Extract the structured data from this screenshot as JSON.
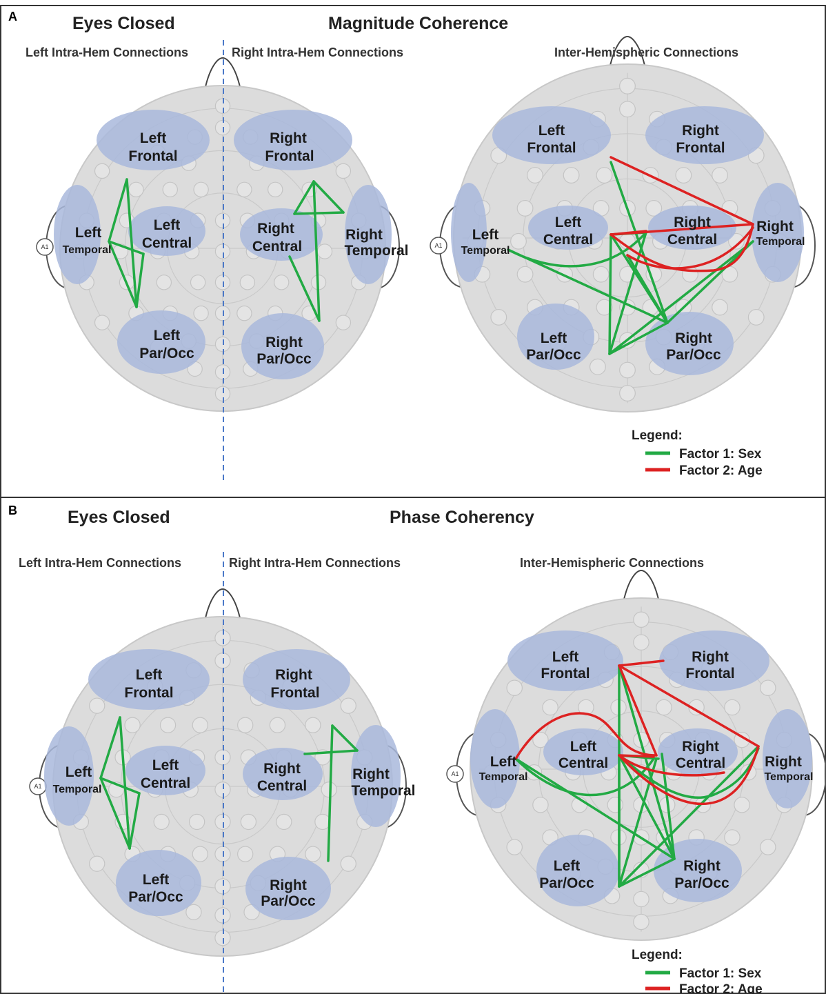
{
  "panels": [
    {
      "letter": "A",
      "condition": "Eyes Closed",
      "measure": "Magnitude Coherence",
      "left_intra_label": "Left Intra-Hem Connections",
      "right_intra_label": "Right Intra-Hem Connections",
      "inter_label": "Inter-Hemispheric Connections"
    },
    {
      "letter": "B",
      "condition": "Eyes Closed",
      "measure": "Phase Coherency",
      "left_intra_label": "Left Intra-Hem Connections",
      "right_intra_label": "Right Intra-Hem Connections",
      "inter_label": "Inter-Hemispheric Connections"
    }
  ],
  "regions": {
    "left_frontal": [
      "Left",
      "Frontal"
    ],
    "right_frontal": [
      "Right",
      "Frontal"
    ],
    "left_temporal": [
      "Left",
      "Temporal"
    ],
    "right_temporal": [
      "Right",
      "Temporal"
    ],
    "left_central": [
      "Left",
      "Central"
    ],
    "right_central": [
      "Right",
      "Central"
    ],
    "left_parocc": [
      "Left",
      "Par/Occ"
    ],
    "right_parocc": [
      "Right",
      "Par/Occ"
    ]
  },
  "ear_label": "A1",
  "legend": {
    "title": "Legend:",
    "items": [
      {
        "label": "Factor 1:  Sex",
        "color": "#22aa44"
      },
      {
        "label": "Factor 2: Age",
        "color": "#dd2222"
      }
    ]
  },
  "colors": {
    "sex": "#22aa44",
    "age": "#dd2222",
    "region_fill": "#a9b9dc",
    "head_fill": "#dcdcdc"
  }
}
